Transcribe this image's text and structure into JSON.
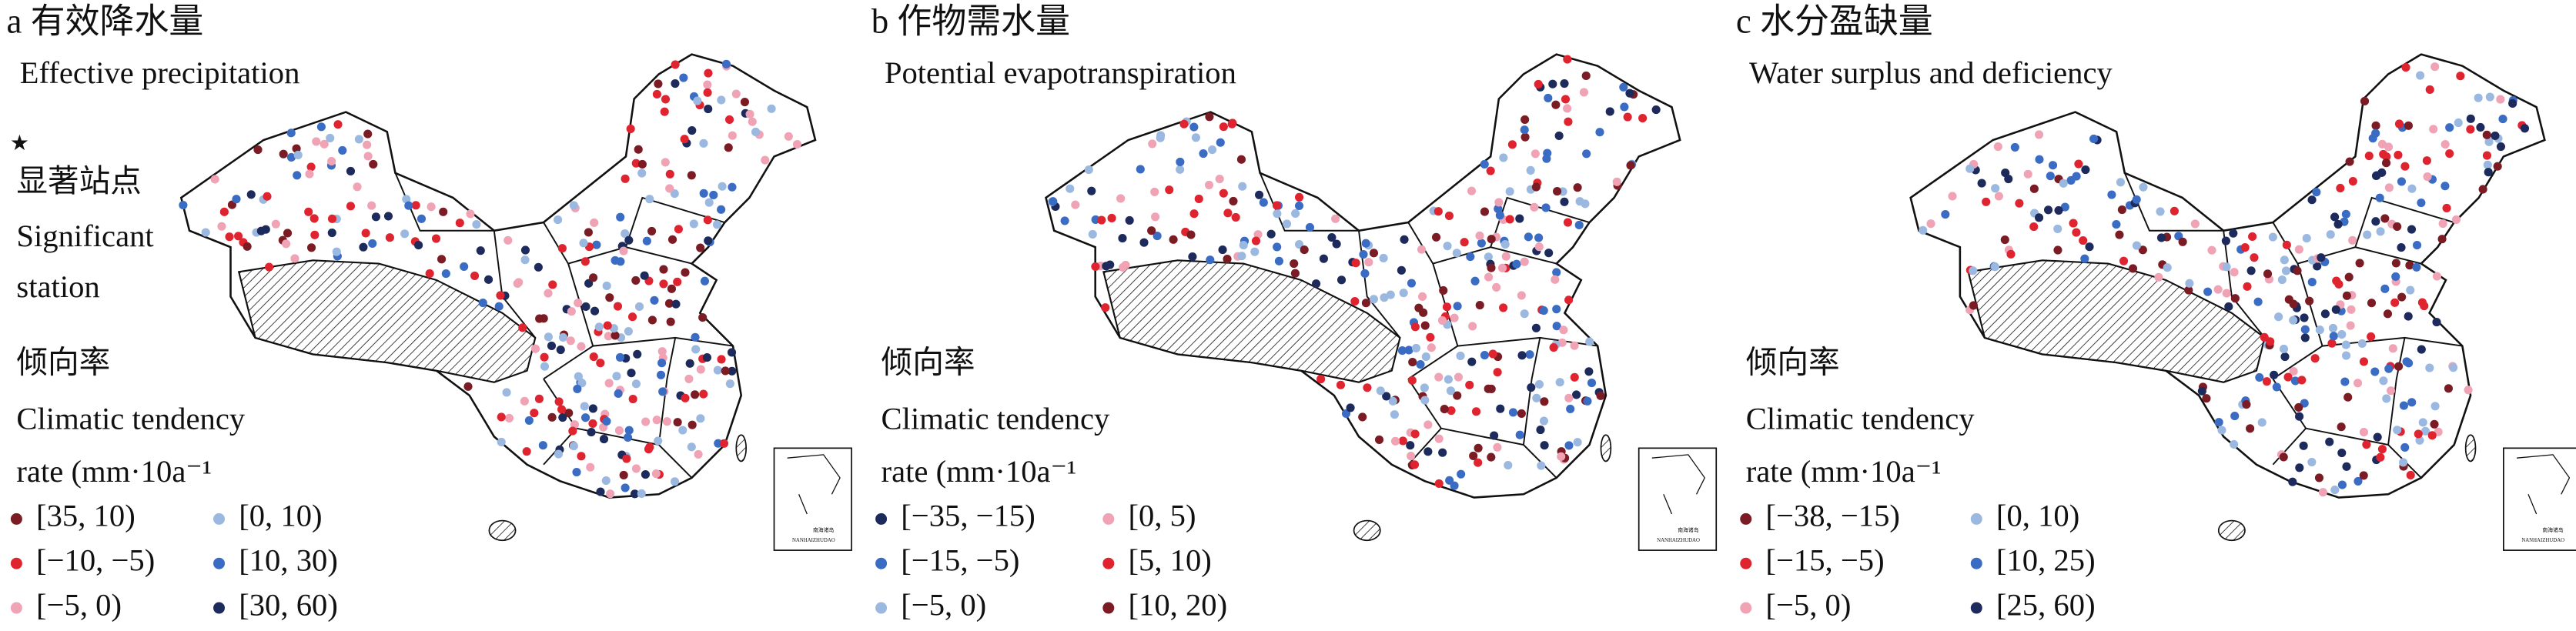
{
  "panels": [
    {
      "title": "a 有效降水量",
      "subtitle": "Effective precipitation",
      "significance": {
        "symbol": "★",
        "label_zh": "显著站点",
        "label_en": [
          "Significant",
          "station"
        ]
      },
      "legend_title_zh": "倾向率",
      "legend_title_en": [
        "Climatic tendency",
        "rate (mm·10a⁻¹"
      ],
      "legend": [
        {
          "label": "[35, 10)",
          "color": "#7b1c24"
        },
        {
          "label": "[0, 10)",
          "color": "#9bb8e0"
        },
        {
          "label": "[−10, −5)",
          "color": "#e0242f"
        },
        {
          "label": "[10, 30)",
          "color": "#3b6cc4"
        },
        {
          "label": "[−5, 0)",
          "color": "#f0a3b5"
        },
        {
          "label": "[30, 60)",
          "color": "#1d2a5c"
        }
      ],
      "inset": [
        "南海诸岛",
        "NANHAIZHUDAO"
      ]
    },
    {
      "title": "b 作物需水量",
      "subtitle": "Potential evapotranspiration",
      "legend_title_zh": "倾向率",
      "legend_title_en": [
        "Climatic tendency",
        "rate (mm·10a⁻¹"
      ],
      "legend": [
        {
          "label": "[−35, −15)",
          "color": "#1d2a5c"
        },
        {
          "label": "[0, 5)",
          "color": "#f0a3b5"
        },
        {
          "label": "[−15, −5)",
          "color": "#3b6cc4"
        },
        {
          "label": "[5, 10)",
          "color": "#e0242f"
        },
        {
          "label": "[−5, 0)",
          "color": "#9bb8e0"
        },
        {
          "label": "[10, 20)",
          "color": "#7b1c24"
        }
      ],
      "inset": [
        "南海诸岛",
        "NANHAIZHUDAO"
      ]
    },
    {
      "title": "c 水分盈缺量",
      "subtitle": "Water surplus and deficiency",
      "legend_title_zh": "倾向率",
      "legend_title_en": [
        "Climatic tendency",
        "rate (mm·10a⁻¹"
      ],
      "legend": [
        {
          "label": "[−38, −15)",
          "color": "#7b1c24"
        },
        {
          "label": "[0, 10)",
          "color": "#9bb8e0"
        },
        {
          "label": "[−15, −5)",
          "color": "#e0242f"
        },
        {
          "label": "[10, 25)",
          "color": "#3b6cc4"
        },
        {
          "label": "[−5, 0)",
          "color": "#f0a3b5"
        },
        {
          "label": "[25, 60)",
          "color": "#1d2a5c"
        }
      ],
      "inset": [
        "南海诸岛",
        "NANHAIZHUDAO"
      ]
    }
  ]
}
